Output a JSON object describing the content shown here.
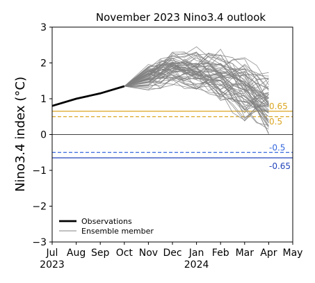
{
  "chart_data": {
    "type": "line",
    "title": "November 2023 Nino3.4 outlook",
    "ylabel": "Nino3.4 index (°C)",
    "xlabel": "",
    "ylim": [
      -3,
      3
    ],
    "xlim": [
      0,
      10
    ],
    "yticks": [
      -3,
      -2,
      -1,
      0,
      1,
      2,
      3
    ],
    "yticklabels": [
      "−3",
      "−2",
      "−1",
      "0",
      "1",
      "2",
      "3"
    ],
    "xticks": [
      {
        "pos": 0,
        "label": "Jul"
      },
      {
        "pos": 1,
        "label": "Aug"
      },
      {
        "pos": 2,
        "label": "Sep"
      },
      {
        "pos": 3,
        "label": "Oct"
      },
      {
        "pos": 4,
        "label": "Nov"
      },
      {
        "pos": 5,
        "label": "Dec"
      },
      {
        "pos": 6,
        "label": "Jan"
      },
      {
        "pos": 7,
        "label": "Feb"
      },
      {
        "pos": 8,
        "label": "Mar"
      },
      {
        "pos": 9,
        "label": "Apr"
      },
      {
        "pos": 10,
        "label": "May"
      }
    ],
    "year_labels": [
      {
        "pos": 0,
        "label": "2023"
      },
      {
        "pos": 6,
        "label": "2024"
      }
    ],
    "grid": false,
    "legend_position": "lower-left",
    "legend": [
      {
        "label": "Observations",
        "color": "#000000",
        "style": "thick"
      },
      {
        "label": "Ensemble member",
        "color": "#808080",
        "style": "thin"
      }
    ],
    "observations": {
      "x": [
        0,
        1,
        2,
        3
      ],
      "y": [
        0.8,
        1.0,
        1.15,
        1.35
      ],
      "color": "#000000"
    },
    "ensemble": {
      "color": "#808080",
      "x": [
        4,
        5,
        6,
        7,
        8,
        9
      ],
      "mean": [
        1.65,
        1.85,
        1.8,
        1.6,
        1.25,
        0.85
      ],
      "envelope_low": [
        1.2,
        1.2,
        1.15,
        0.5,
        0.15,
        -0.2
      ],
      "envelope_high": [
        2.1,
        2.3,
        2.45,
        2.65,
        2.15,
        1.85
      ],
      "member_count": 60
    },
    "reference_lines": [
      {
        "value": 0,
        "color": "#000000",
        "style": "solid",
        "label": ""
      },
      {
        "value": 0.65,
        "color": "#DAA520",
        "style": "solid",
        "label": "0.65"
      },
      {
        "value": 0.5,
        "color": "#DAA520",
        "style": "dashed",
        "label": "0.5"
      },
      {
        "value": -0.5,
        "color": "#3366DD",
        "style": "dashed",
        "label": "-0.5"
      },
      {
        "value": -0.65,
        "color": "#2244BB",
        "style": "solid",
        "label": "-0.65"
      }
    ]
  }
}
